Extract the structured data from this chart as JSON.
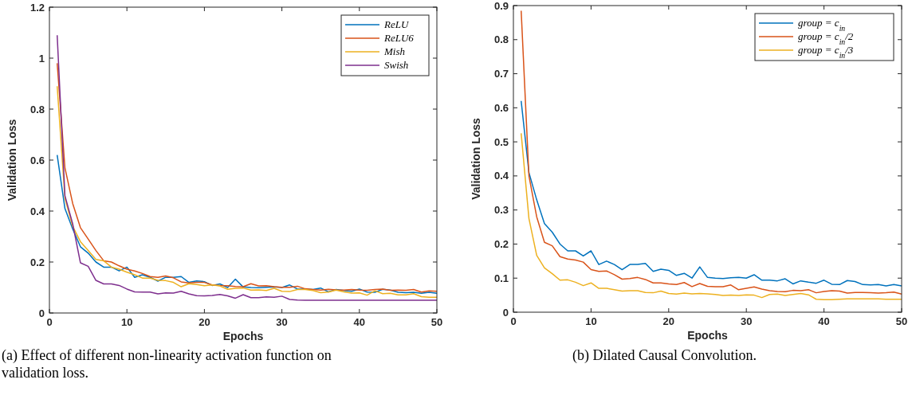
{
  "chart_data": [
    {
      "type": "line",
      "title": "(a) Effect of different non-linearity activation function on validation loss.",
      "xlabel": "Epochs",
      "ylabel": "Validation Loss",
      "xlim": [
        0,
        50
      ],
      "xticks": [
        0,
        10,
        20,
        30,
        40,
        50
      ],
      "ylim": [
        0,
        1.2
      ],
      "yticks": [
        0,
        0.2,
        0.4,
        0.6,
        0.8,
        1,
        1.2
      ],
      "legend": "top right",
      "grid": false,
      "x": [
        1,
        2,
        3,
        4,
        5,
        6,
        7,
        8,
        9,
        10,
        11,
        12,
        13,
        14,
        15,
        16,
        17,
        18,
        19,
        20,
        21,
        22,
        23,
        24,
        25,
        26,
        27,
        28,
        29,
        30,
        31,
        32,
        33,
        34,
        35,
        36,
        37,
        38,
        39,
        40,
        41,
        42,
        43,
        44,
        45,
        46,
        47,
        48,
        49,
        50
      ],
      "series": [
        {
          "name": "ReLU",
          "color": "#0072bd",
          "values": [
            0.62,
            0.41,
            0.33,
            0.26,
            0.235,
            0.2,
            0.18,
            0.18,
            0.165,
            0.18,
            0.14,
            0.15,
            0.14,
            0.125,
            0.14,
            0.14,
            0.143,
            0.12,
            0.126,
            0.123,
            0.108,
            0.114,
            0.1,
            0.133,
            0.102,
            0.1,
            0.099,
            0.101,
            0.102,
            0.1,
            0.11,
            0.094,
            0.094,
            0.092,
            0.098,
            0.083,
            0.092,
            0.088,
            0.085,
            0.094,
            0.082,
            0.081,
            0.093,
            0.09,
            0.081,
            0.08,
            0.081,
            0.077,
            0.081,
            0.077
          ]
        },
        {
          "name": "ReLU6",
          "color": "#d95319",
          "values": [
            0.98,
            0.57,
            0.43,
            0.335,
            0.29,
            0.245,
            0.205,
            0.2,
            0.185,
            0.172,
            0.165,
            0.155,
            0.143,
            0.14,
            0.145,
            0.138,
            0.122,
            0.118,
            0.12,
            0.12,
            0.11,
            0.108,
            0.107,
            0.104,
            0.103,
            0.115,
            0.106,
            0.107,
            0.103,
            0.101,
            0.101,
            0.105,
            0.095,
            0.092,
            0.09,
            0.093,
            0.091,
            0.09,
            0.092,
            0.09,
            0.089,
            0.092,
            0.094,
            0.089,
            0.09,
            0.089,
            0.092,
            0.082,
            0.087,
            0.085
          ]
        },
        {
          "name": "Mish",
          "color": "#edb120",
          "values": [
            0.89,
            0.45,
            0.34,
            0.28,
            0.245,
            0.21,
            0.205,
            0.18,
            0.172,
            0.16,
            0.15,
            0.137,
            0.137,
            0.128,
            0.127,
            0.12,
            0.103,
            0.115,
            0.112,
            0.107,
            0.11,
            0.106,
            0.093,
            0.097,
            0.098,
            0.09,
            0.091,
            0.088,
            0.097,
            0.085,
            0.084,
            0.092,
            0.092,
            0.088,
            0.08,
            0.082,
            0.09,
            0.083,
            0.078,
            0.079,
            0.07,
            0.087,
            0.076,
            0.077,
            0.071,
            0.071,
            0.076,
            0.064,
            0.062,
            0.062
          ]
        },
        {
          "name": "Swish",
          "color": "#7e2f8e",
          "values": [
            1.09,
            0.46,
            0.35,
            0.197,
            0.183,
            0.128,
            0.114,
            0.114,
            0.108,
            0.094,
            0.083,
            0.082,
            0.082,
            0.075,
            0.079,
            0.078,
            0.085,
            0.075,
            0.068,
            0.067,
            0.069,
            0.073,
            0.067,
            0.058,
            0.072,
            0.06,
            0.06,
            0.063,
            0.062,
            0.066,
            0.053,
            0.051,
            0.05,
            0.05,
            0.05,
            0.05,
            0.05,
            0.05,
            0.05,
            0.05,
            0.05,
            0.05,
            0.05,
            0.05,
            0.05,
            0.05,
            0.05,
            0.05,
            0.05,
            0.05
          ]
        }
      ]
    },
    {
      "type": "line",
      "title": "(b) Dilated Causal Convolution.",
      "xlabel": "Epochs",
      "ylabel": "Validation Loss",
      "xlim": [
        0,
        50
      ],
      "xticks": [
        0,
        10,
        20,
        30,
        40,
        50
      ],
      "ylim": [
        0,
        0.9
      ],
      "yticks": [
        0,
        0.1,
        0.2,
        0.3,
        0.4,
        0.5,
        0.6,
        0.7,
        0.8,
        0.9
      ],
      "legend": "top right",
      "grid": false,
      "x": [
        1,
        2,
        3,
        4,
        5,
        6,
        7,
        8,
        9,
        10,
        11,
        12,
        13,
        14,
        15,
        16,
        17,
        18,
        19,
        20,
        21,
        22,
        23,
        24,
        25,
        26,
        27,
        28,
        29,
        30,
        31,
        32,
        33,
        34,
        35,
        36,
        37,
        38,
        39,
        40,
        41,
        42,
        43,
        44,
        45,
        46,
        47,
        48,
        49,
        50
      ],
      "series": [
        {
          "name": "group = c$_{in}$",
          "color": "#0072bd",
          "values": [
            0.62,
            0.41,
            0.33,
            0.26,
            0.235,
            0.2,
            0.18,
            0.18,
            0.165,
            0.18,
            0.14,
            0.15,
            0.14,
            0.125,
            0.14,
            0.14,
            0.143,
            0.12,
            0.126,
            0.123,
            0.108,
            0.114,
            0.1,
            0.133,
            0.102,
            0.1,
            0.099,
            0.101,
            0.102,
            0.1,
            0.11,
            0.094,
            0.094,
            0.092,
            0.098,
            0.083,
            0.092,
            0.088,
            0.085,
            0.094,
            0.082,
            0.081,
            0.093,
            0.09,
            0.081,
            0.08,
            0.081,
            0.077,
            0.081,
            0.077
          ]
        },
        {
          "name": "group = c$_{in}$/2",
          "color": "#d95319",
          "values": [
            0.885,
            0.4,
            0.28,
            0.205,
            0.195,
            0.163,
            0.156,
            0.153,
            0.147,
            0.125,
            0.12,
            0.121,
            0.11,
            0.097,
            0.099,
            0.102,
            0.096,
            0.086,
            0.086,
            0.083,
            0.081,
            0.087,
            0.075,
            0.084,
            0.076,
            0.075,
            0.075,
            0.08,
            0.066,
            0.07,
            0.074,
            0.068,
            0.063,
            0.061,
            0.06,
            0.064,
            0.063,
            0.066,
            0.057,
            0.061,
            0.063,
            0.062,
            0.056,
            0.058,
            0.058,
            0.057,
            0.056,
            0.057,
            0.059,
            0.053
          ]
        },
        {
          "name": "group = c$_{in}$/3",
          "color": "#edb120",
          "values": [
            0.525,
            0.275,
            0.167,
            0.13,
            0.113,
            0.094,
            0.095,
            0.088,
            0.078,
            0.086,
            0.07,
            0.07,
            0.066,
            0.062,
            0.063,
            0.063,
            0.058,
            0.057,
            0.062,
            0.055,
            0.053,
            0.056,
            0.054,
            0.055,
            0.054,
            0.052,
            0.049,
            0.05,
            0.049,
            0.051,
            0.05,
            0.043,
            0.052,
            0.053,
            0.049,
            0.052,
            0.055,
            0.051,
            0.038,
            0.037,
            0.037,
            0.038,
            0.039,
            0.039,
            0.039,
            0.039,
            0.039,
            0.038,
            0.038,
            0.038
          ]
        }
      ]
    }
  ]
}
